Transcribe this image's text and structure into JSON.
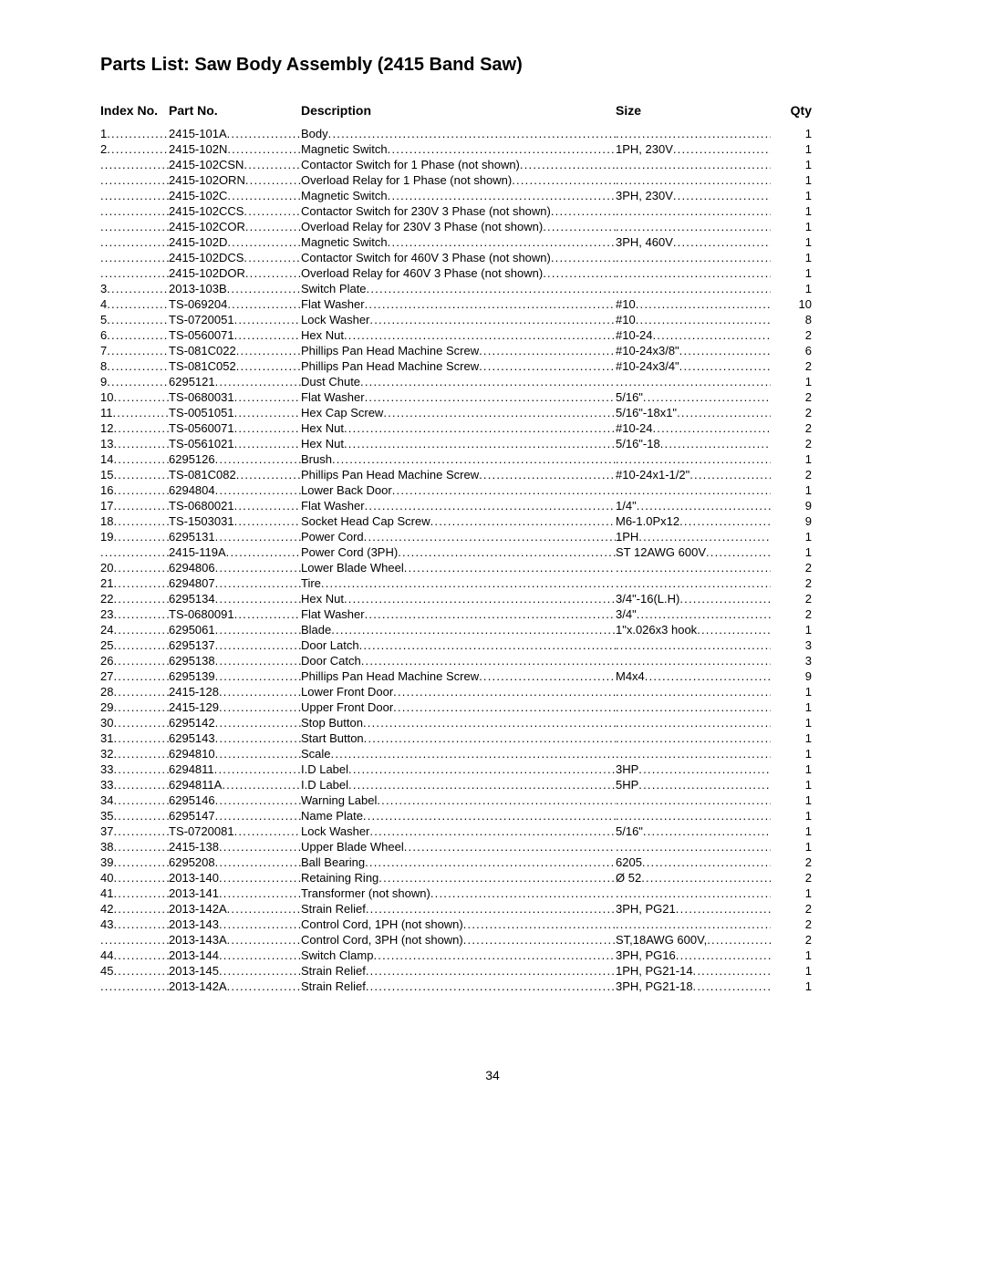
{
  "title": "Parts List: Saw Body Assembly (2415 Band Saw)",
  "headers": {
    "index": "Index No.",
    "partno": "Part No.",
    "description": "Description",
    "size": "Size",
    "qty": "Qty"
  },
  "page_number": "34",
  "columns": {
    "index_width": 75,
    "partno_width": 145,
    "description_width": 345,
    "size_width": 170,
    "qty_width": 45
  },
  "typography": {
    "title_fontsize": 20,
    "header_fontsize": 14,
    "body_fontsize": 13,
    "line_height": 1.3
  },
  "colors": {
    "text": "#000000",
    "background": "#ffffff"
  },
  "rows": [
    {
      "index": "1",
      "partno": "2415-101A",
      "description": "Body",
      "size": "",
      "qty": "1"
    },
    {
      "index": "2",
      "partno": "2415-102N",
      "description": "Magnetic Switch",
      "size": "1PH, 230V",
      "qty": "1"
    },
    {
      "index": "",
      "partno": "2415-102CSN",
      "description": "Contactor Switch for 1 Phase (not shown)",
      "size": "",
      "qty": "1"
    },
    {
      "index": "",
      "partno": "2415-102ORN",
      "description": "Overload Relay for 1 Phase (not shown)",
      "size": "",
      "qty": "1"
    },
    {
      "index": "",
      "partno": "2415-102C",
      "description": "Magnetic Switch",
      "size": "3PH, 230V",
      "qty": "1"
    },
    {
      "index": "",
      "partno": "2415-102CCS",
      "description": "Contactor Switch for 230V 3 Phase (not shown)",
      "size": "",
      "qty": "1"
    },
    {
      "index": "",
      "partno": "2415-102COR",
      "description": "Overload Relay for 230V 3 Phase (not shown)",
      "size": "",
      "qty": "1"
    },
    {
      "index": "",
      "partno": "2415-102D",
      "description": "Magnetic Switch",
      "size": "3PH, 460V",
      "qty": "1"
    },
    {
      "index": "",
      "partno": "2415-102DCS",
      "description": "Contactor Switch for 460V 3 Phase (not shown)",
      "size": "",
      "qty": "1"
    },
    {
      "index": "",
      "partno": "2415-102DOR",
      "description": "Overload Relay for 460V 3 Phase (not shown)",
      "size": "",
      "qty": "1"
    },
    {
      "index": "3",
      "partno": "2013-103B",
      "description": "Switch Plate",
      "size": "",
      "qty": "1"
    },
    {
      "index": "4",
      "partno": "TS-069204",
      "description": "Flat Washer",
      "size": "#10",
      "qty": "10"
    },
    {
      "index": "5",
      "partno": "TS-0720051",
      "description": "Lock Washer",
      "size": "#10",
      "qty": "8"
    },
    {
      "index": "6",
      "partno": "TS-0560071",
      "description": "Hex Nut",
      "size": "#10-24",
      "qty": "2"
    },
    {
      "index": "7",
      "partno": "TS-081C022",
      "description": "Phillips Pan Head Machine Screw",
      "size": "#10-24x3/8\"",
      "qty": "6"
    },
    {
      "index": "8",
      "partno": "TS-081C052",
      "description": "Phillips Pan Head Machine Screw",
      "size": "#10-24x3/4\"",
      "qty": "2"
    },
    {
      "index": "9",
      "partno": "6295121",
      "description": "Dust Chute",
      "size": "",
      "qty": "1"
    },
    {
      "index": "10",
      "partno": "TS-0680031",
      "description": "Flat Washer",
      "size": "5/16\"",
      "qty": "2"
    },
    {
      "index": "11",
      "partno": "TS-0051051",
      "description": "Hex Cap Screw",
      "size": "5/16\"-18x1\"",
      "qty": "2"
    },
    {
      "index": "12",
      "partno": "TS-0560071",
      "description": "Hex Nut",
      "size": "#10-24",
      "qty": "2"
    },
    {
      "index": "13",
      "partno": "TS-0561021",
      "description": "Hex Nut",
      "size": "5/16\"-18",
      "qty": "2"
    },
    {
      "index": "14",
      "partno": "6295126",
      "description": "Brush",
      "size": "",
      "qty": "1"
    },
    {
      "index": "15",
      "partno": "TS-081C082",
      "description": "Phillips Pan Head Machine Screw",
      "size": "#10-24x1-1/2\"",
      "qty": "2"
    },
    {
      "index": "16",
      "partno": "6294804",
      "description": "Lower Back Door",
      "size": "",
      "qty": "1"
    },
    {
      "index": "17",
      "partno": "TS-0680021",
      "description": "Flat Washer",
      "size": "1/4\"",
      "qty": "9"
    },
    {
      "index": "18",
      "partno": "TS-1503031",
      "description": "Socket Head Cap Screw",
      "size": "M6-1.0Px12",
      "qty": "9"
    },
    {
      "index": "19",
      "partno": "6295131",
      "description": "Power Cord",
      "size": "1PH",
      "qty": "1"
    },
    {
      "index": "",
      "partno": "2415-119A",
      "description": "Power Cord (3PH)",
      "size": "ST 12AWG 600V",
      "qty": "1"
    },
    {
      "index": "20",
      "partno": "6294806",
      "description": "Lower Blade Wheel",
      "size": "",
      "qty": "2"
    },
    {
      "index": "21",
      "partno": "6294807",
      "description": "Tire",
      "size": "",
      "qty": "2"
    },
    {
      "index": "22",
      "partno": "6295134",
      "description": "Hex Nut",
      "size": "3/4\"-16(L.H)",
      "qty": "2"
    },
    {
      "index": "23",
      "partno": "TS-0680091",
      "description": "Flat Washer",
      "size": "3/4\"",
      "qty": "2"
    },
    {
      "index": "24",
      "partno": "6295061",
      "description": "Blade",
      "size": "1\"x.026x3 hook",
      "qty": "1"
    },
    {
      "index": "25",
      "partno": "6295137",
      "description": "Door Latch",
      "size": "",
      "qty": "3"
    },
    {
      "index": "26",
      "partno": "6295138",
      "description": "Door Catch",
      "size": "",
      "qty": "3"
    },
    {
      "index": "27",
      "partno": "6295139",
      "description": "Phillips Pan Head Machine Screw",
      "size": "M4x4",
      "qty": "9"
    },
    {
      "index": "28",
      "partno": "2415-128",
      "description": "Lower Front Door",
      "size": "",
      "qty": "1"
    },
    {
      "index": "29",
      "partno": "2415-129",
      "description": "Upper Front Door",
      "size": "",
      "qty": "1"
    },
    {
      "index": "30",
      "partno": "6295142",
      "description": "Stop Button",
      "size": "",
      "qty": "1"
    },
    {
      "index": "31",
      "partno": "6295143",
      "description": "Start Button",
      "size": "",
      "qty": "1"
    },
    {
      "index": "32",
      "partno": "6294810",
      "description": "Scale",
      "size": "",
      "qty": "1"
    },
    {
      "index": "33",
      "partno": "6294811",
      "description": "I.D Label",
      "size": "3HP",
      "qty": "1"
    },
    {
      "index": "33",
      "partno": "6294811A",
      "description": "I.D Label",
      "size": "5HP",
      "qty": "1"
    },
    {
      "index": "34",
      "partno": "6295146",
      "description": "Warning Label",
      "size": "",
      "qty": "1"
    },
    {
      "index": "35",
      "partno": "6295147",
      "description": "Name Plate",
      "size": "",
      "qty": "1"
    },
    {
      "index": "37",
      "partno": "TS-0720081",
      "description": "Lock Washer",
      "size": "5/16\"",
      "qty": "1"
    },
    {
      "index": "38",
      "partno": "2415-138",
      "description": "Upper Blade Wheel",
      "size": "",
      "qty": "1"
    },
    {
      "index": "39",
      "partno": "6295208",
      "description": "Ball Bearing",
      "size": "6205",
      "qty": "2"
    },
    {
      "index": "40",
      "partno": "2013-140",
      "description": "Retaining Ring",
      "size": "Ø 52",
      "qty": "2"
    },
    {
      "index": "41",
      "partno": "2013-141",
      "description": "Transformer (not shown)",
      "size": "",
      "qty": "1"
    },
    {
      "index": "42",
      "partno": "2013-142A",
      "description": "Strain Relief",
      "size": "3PH, PG21",
      "qty": "2"
    },
    {
      "index": "43",
      "partno": "2013-143",
      "description": "Control Cord, 1PH (not shown)",
      "size": "",
      "qty": "2"
    },
    {
      "index": "",
      "partno": "2013-143A",
      "description": "Control Cord, 3PH (not shown)",
      "size": "ST,18AWG 600V,",
      "qty": "2"
    },
    {
      "index": "44",
      "partno": "2013-144",
      "description": "Switch Clamp",
      "size": "3PH, PG16",
      "qty": "1"
    },
    {
      "index": "45",
      "partno": "2013-145",
      "description": "Strain Relief",
      "size": "1PH, PG21-14",
      "qty": "1"
    },
    {
      "index": "",
      "partno": "2013-142A",
      "description": "Strain Relief",
      "size": "3PH, PG21-18",
      "qty": "1"
    }
  ]
}
